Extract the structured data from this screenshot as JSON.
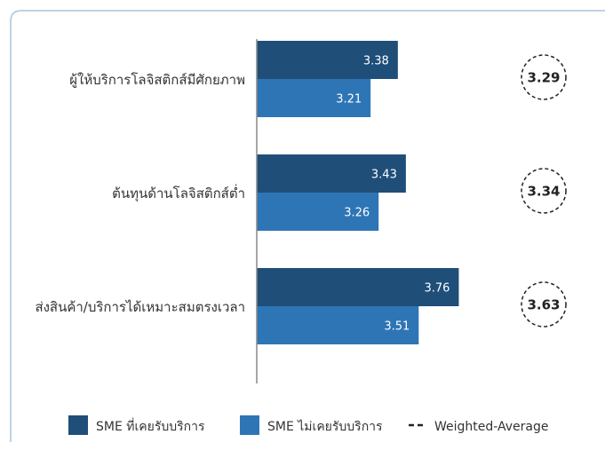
{
  "chart_data": {
    "type": "bar",
    "orientation": "horizontal",
    "categories": [
      "ผู้ให้บริการโลจิสติกส์มีศักยภาพ",
      "ต้นทุนด้านโลจิสติกส์ต่ำ",
      "ส่งสินค้า/บริการได้เหมาะสมตรงเวลา"
    ],
    "series": [
      {
        "name": "SME ที่เคยรับบริการ",
        "color": "#1f4e79",
        "values": [
          3.38,
          3.43,
          3.76
        ]
      },
      {
        "name": "SME ไม่เคยรับบริการ",
        "color": "#2e75b6",
        "values": [
          3.21,
          3.26,
          3.51
        ]
      }
    ],
    "weighted_average": {
      "name": "Weighted-Average",
      "values": [
        3.29,
        3.34,
        3.63
      ]
    },
    "value_labels": {
      "s0": [
        "3.38",
        "3.43",
        "3.76"
      ],
      "s1": [
        "3.21",
        "3.26",
        "3.51"
      ],
      "wavg": [
        "3.29",
        "3.34",
        "3.63"
      ]
    },
    "xlim": [
      2.5,
      4.0
    ],
    "grid": false,
    "legend_position": "bottom"
  }
}
